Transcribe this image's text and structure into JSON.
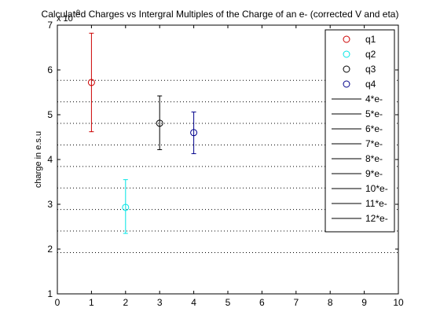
{
  "chart_data": {
    "type": "scatter",
    "title": "Calculated Charges vs Intergral Multiples of the Charge of an e- (corrected V and eta)",
    "ylabel": "charge in e.s.u",
    "xlabel": "",
    "exponent_label": "x 10",
    "exponent_power": "-9",
    "xlim": [
      0,
      10
    ],
    "ylim": [
      1,
      7
    ],
    "xticks": [
      "0",
      "1",
      "2",
      "3",
      "4",
      "5",
      "6",
      "7",
      "8",
      "9",
      "10"
    ],
    "yticks": [
      "1",
      "2",
      "3",
      "4",
      "5",
      "6",
      "7"
    ],
    "legend_position": "top-right",
    "series": [
      {
        "name": "q1",
        "color": "#cc0000",
        "x": 1,
        "y": 5.72,
        "err_low": 4.62,
        "err_high": 6.82
      },
      {
        "name": "q2",
        "color": "#00e5e5",
        "x": 2,
        "y": 2.93,
        "err_low": 2.35,
        "err_high": 3.55
      },
      {
        "name": "q3",
        "color": "#000000",
        "x": 3,
        "y": 4.81,
        "err_low": 4.22,
        "err_high": 5.42
      },
      {
        "name": "q4",
        "color": "#00008b",
        "x": 4,
        "y": 4.6,
        "err_low": 4.13,
        "err_high": 5.06
      }
    ],
    "reference_lines": [
      {
        "name": "4*e-",
        "y": 1.922
      },
      {
        "name": "5*e-",
        "y": 2.403
      },
      {
        "name": "6*e-",
        "y": 2.884
      },
      {
        "name": "7*e-",
        "y": 3.364
      },
      {
        "name": "8*e-",
        "y": 3.845
      },
      {
        "name": "9*e-",
        "y": 4.325
      },
      {
        "name": "10*e-",
        "y": 4.806
      },
      {
        "name": "11*e-",
        "y": 5.287
      },
      {
        "name": "12*e-",
        "y": 5.767
      }
    ]
  }
}
